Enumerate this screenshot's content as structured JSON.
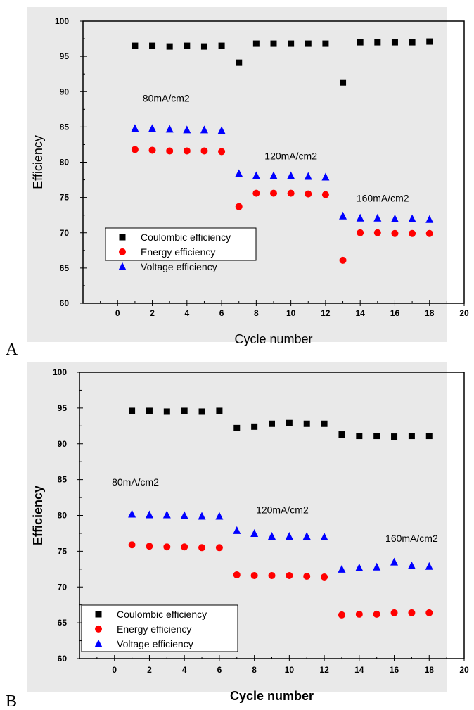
{
  "colors": {
    "coulombic": "#000000",
    "energy": "#ff0000",
    "voltage": "#0000ff",
    "plot_bg": "#e9e9e9",
    "page_bg": "#ffffff"
  },
  "chart_data": [
    {
      "panel": "A",
      "type": "scatter",
      "xlabel": "Cycle number",
      "ylabel": "Efficiency",
      "xlim": [
        -2,
        20
      ],
      "ylim": [
        60,
        100
      ],
      "xticks": [
        0,
        2,
        4,
        6,
        8,
        10,
        12,
        14,
        16,
        18,
        20
      ],
      "yticks": [
        60,
        65,
        70,
        75,
        80,
        85,
        90,
        95,
        100
      ],
      "grid": false,
      "legend_position": "bottom-left",
      "x": [
        1,
        2,
        3,
        4,
        5,
        6,
        7,
        8,
        9,
        10,
        11,
        12,
        13,
        14,
        15,
        16,
        17,
        18
      ],
      "series": [
        {
          "name": "Coulombic efficiency",
          "marker": "square",
          "color": "#000000",
          "values": [
            96.5,
            96.5,
            96.4,
            96.5,
            96.4,
            96.5,
            94.1,
            96.8,
            96.8,
            96.8,
            96.8,
            96.8,
            91.3,
            97.0,
            97.0,
            97.0,
            97.0,
            97.1
          ]
        },
        {
          "name": "Energy efficiency",
          "marker": "circle",
          "color": "#ff0000",
          "values": [
            81.8,
            81.7,
            81.6,
            81.6,
            81.6,
            81.5,
            73.7,
            75.6,
            75.6,
            75.6,
            75.5,
            75.4,
            66.1,
            70.0,
            70.0,
            69.9,
            69.9,
            69.9
          ]
        },
        {
          "name": "Voltage efficiency",
          "marker": "triangle",
          "color": "#0000ff",
          "values": [
            84.8,
            84.8,
            84.7,
            84.6,
            84.6,
            84.5,
            78.4,
            78.1,
            78.1,
            78.1,
            78.0,
            77.9,
            72.4,
            72.1,
            72.1,
            72.0,
            72.0,
            71.9
          ]
        }
      ],
      "annotations": [
        {
          "text": "80mA/cm2",
          "x": 2.8,
          "y": 88.6
        },
        {
          "text": "120mA/cm2",
          "x": 10.0,
          "y": 80.4
        },
        {
          "text": "160mA/cm2",
          "x": 15.3,
          "y": 74.4
        }
      ]
    },
    {
      "panel": "B",
      "type": "scatter",
      "xlabel": "Cycle number",
      "ylabel": "Efficiency",
      "xlim": [
        -2,
        20
      ],
      "ylim": [
        60,
        100
      ],
      "xticks": [
        0,
        2,
        4,
        6,
        8,
        10,
        12,
        14,
        16,
        18,
        20
      ],
      "yticks": [
        60,
        65,
        70,
        75,
        80,
        85,
        90,
        95,
        100
      ],
      "grid": false,
      "legend_position": "bottom-left",
      "x": [
        1,
        2,
        3,
        4,
        5,
        6,
        7,
        8,
        9,
        10,
        11,
        12,
        13,
        14,
        15,
        16,
        17,
        18
      ],
      "series": [
        {
          "name": "Coulombic efficiency",
          "marker": "square",
          "color": "#000000",
          "values": [
            94.6,
            94.6,
            94.5,
            94.6,
            94.5,
            94.6,
            92.2,
            92.4,
            92.8,
            92.9,
            92.8,
            92.8,
            91.3,
            91.1,
            91.1,
            91.0,
            91.1,
            91.1
          ]
        },
        {
          "name": "Energy efficiency",
          "marker": "circle",
          "color": "#ff0000",
          "values": [
            75.9,
            75.7,
            75.6,
            75.6,
            75.5,
            75.5,
            71.7,
            71.6,
            71.6,
            71.6,
            71.5,
            71.4,
            66.1,
            66.2,
            66.2,
            66.4,
            66.4,
            66.4
          ]
        },
        {
          "name": "Voltage efficiency",
          "marker": "triangle",
          "color": "#0000ff",
          "values": [
            80.2,
            80.1,
            80.1,
            80.0,
            79.9,
            79.9,
            77.9,
            77.5,
            77.1,
            77.1,
            77.1,
            77.0,
            72.5,
            72.7,
            72.8,
            73.5,
            73.0,
            72.9
          ]
        }
      ],
      "annotations": [
        {
          "text": "80mA/cm2",
          "x": 1.2,
          "y": 84.2
        },
        {
          "text": "120mA/cm2",
          "x": 9.6,
          "y": 80.3
        },
        {
          "text": "160mA/cm2",
          "x": 17.0,
          "y": 76.3
        }
      ]
    }
  ]
}
